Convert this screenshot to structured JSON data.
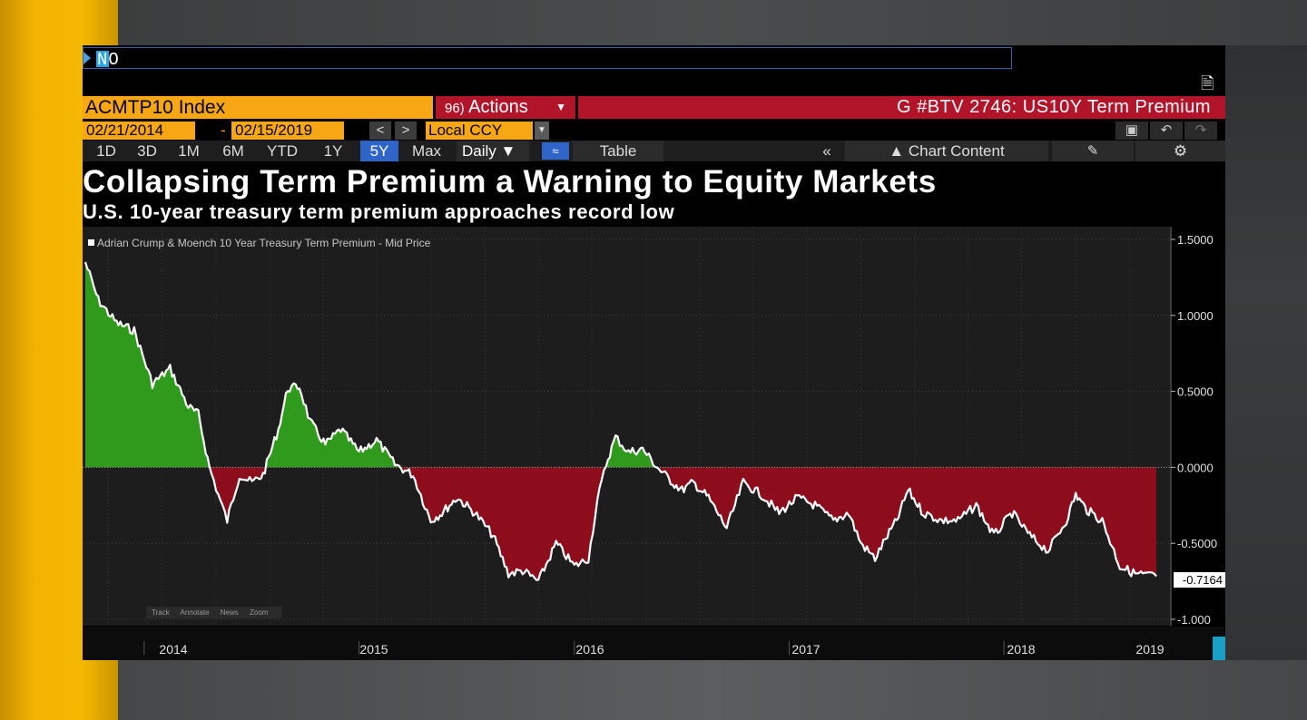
{
  "command": "NO",
  "header": {
    "ticker": "ACMTP10 Index",
    "actions_num": "96)",
    "actions_label": "Actions",
    "banner": "G #BTV 2746: US10Y Term Premium"
  },
  "dates": {
    "start": "02/21/2014",
    "end": "02/15/2019",
    "dash": "-",
    "currency": "Local CCY"
  },
  "ranges": [
    {
      "label": "1D",
      "active": false
    },
    {
      "label": "3D",
      "active": false
    },
    {
      "label": "1M",
      "active": false
    },
    {
      "label": "6M",
      "active": false
    },
    {
      "label": "YTD",
      "active": false
    },
    {
      "label": "1Y",
      "active": false
    },
    {
      "label": "5Y",
      "active": true
    },
    {
      "label": "Max",
      "active": false
    }
  ],
  "toolbar": {
    "frequency": "Daily",
    "table": "Table",
    "chart_content": "Chart Content"
  },
  "tools": [
    "Track",
    "Annotate",
    "News",
    "Zoom"
  ],
  "colors": {
    "positive_fill": "#2f9a1c",
    "negative_fill": "#8e0d1c",
    "line": "#ffffff",
    "orange": "#f7a614",
    "red": "#b2142a",
    "active_blue": "#2f65c8"
  },
  "chart_data": {
    "type": "area",
    "title": "Collapsing Term Premium a Warning to Equity Markets",
    "subtitle": "U.S. 10-year treasury term premium approaches record low",
    "legend": "Adrian Crump & Moench 10 Year Treasury Term Premium - Mid Price",
    "last_value_label": "-0.7164",
    "ylim": [
      -1.0,
      1.5
    ],
    "y_ticks": [
      "1.5000",
      "1.0000",
      "0.5000",
      "0.0000",
      "-0.5000",
      "-1.000"
    ],
    "x_ticks": [
      "2014",
      "2015",
      "2016",
      "2017",
      "2018",
      "2019"
    ],
    "grid": true,
    "series": [
      {
        "x": [
          "2014-02-21",
          "2014-03-15",
          "2014-04-15",
          "2014-05-15",
          "2014-06-15",
          "2014-07-15",
          "2014-08-15",
          "2014-09-01",
          "2014-09-20",
          "2014-10-05",
          "2014-10-20",
          "2014-11-10",
          "2014-12-01",
          "2014-12-20",
          "2015-01-15",
          "2015-01-31",
          "2015-02-20",
          "2015-03-10",
          "2015-04-05",
          "2015-05-01",
          "2015-06-01",
          "2015-07-01",
          "2015-08-01",
          "2015-09-01",
          "2015-10-01",
          "2015-10-20",
          "2015-11-15",
          "2015-12-15",
          "2016-01-15",
          "2016-02-10",
          "2016-03-05",
          "2016-04-01",
          "2016-05-01",
          "2016-06-01",
          "2016-06-25",
          "2016-07-10",
          "2016-07-25",
          "2016-08-10",
          "2016-09-01",
          "2016-09-25",
          "2016-10-20",
          "2016-11-15",
          "2016-12-01",
          "2016-12-20",
          "2017-01-15",
          "2017-02-15",
          "2017-03-15",
          "2017-04-15",
          "2017-05-15",
          "2017-06-15",
          "2017-07-15",
          "2017-08-15",
          "2017-09-10",
          "2017-10-01",
          "2017-10-25",
          "2017-11-15",
          "2017-12-01",
          "2017-12-20",
          "2018-01-15",
          "2018-02-15",
          "2018-03-15",
          "2018-04-15",
          "2018-05-15",
          "2018-06-15",
          "2018-07-15",
          "2018-08-15",
          "2018-09-15",
          "2018-10-01",
          "2018-10-20",
          "2018-11-15",
          "2018-12-15",
          "2019-01-10",
          "2019-02-15"
        ],
        "values": [
          1.35,
          1.1,
          0.95,
          0.9,
          0.55,
          0.65,
          0.4,
          0.35,
          0.0,
          -0.18,
          -0.35,
          -0.05,
          -0.1,
          -0.05,
          0.25,
          0.52,
          0.53,
          0.3,
          0.15,
          0.25,
          0.1,
          0.18,
          0.02,
          -0.05,
          -0.35,
          -0.3,
          -0.2,
          -0.3,
          -0.45,
          -0.7,
          -0.68,
          -0.75,
          -0.5,
          -0.65,
          -0.6,
          -0.22,
          0.02,
          0.2,
          0.1,
          0.12,
          0.0,
          -0.1,
          -0.15,
          -0.1,
          -0.2,
          -0.4,
          -0.1,
          -0.18,
          -0.3,
          -0.2,
          -0.25,
          -0.35,
          -0.3,
          -0.5,
          -0.6,
          -0.45,
          -0.35,
          -0.15,
          -0.3,
          -0.35,
          -0.35,
          -0.25,
          -0.45,
          -0.3,
          -0.45,
          -0.55,
          -0.35,
          -0.18,
          -0.28,
          -0.35,
          -0.65,
          -0.7,
          -0.7164
        ]
      }
    ]
  }
}
